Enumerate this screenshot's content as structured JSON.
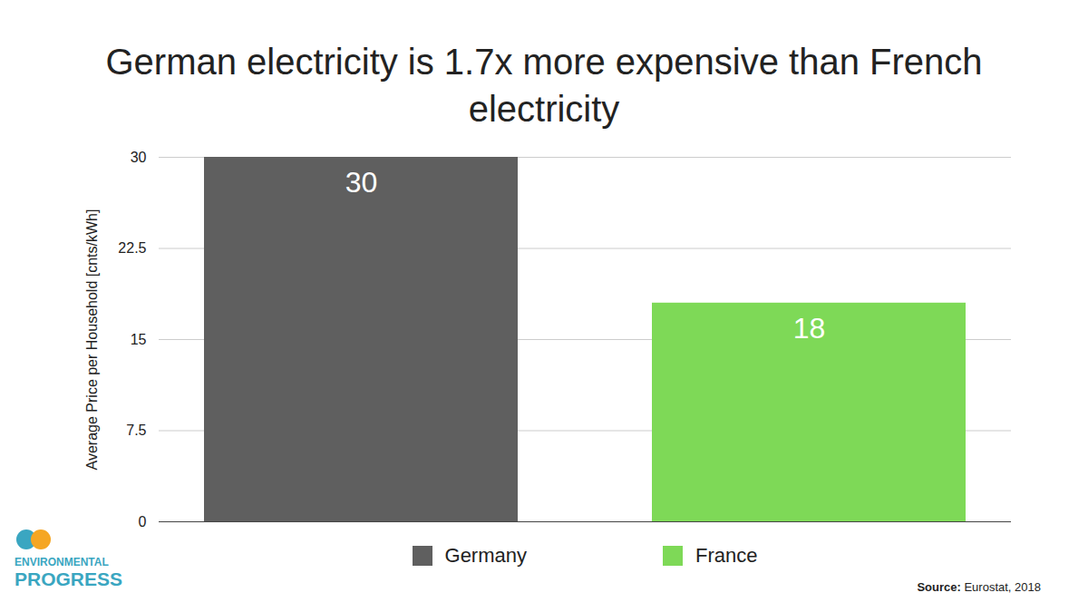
{
  "chart_data": {
    "type": "bar",
    "title": "German electricity is 1.7x more expensive than French electricity",
    "y_label": "Average Price per Household [cnts/kWh]",
    "categories": [
      "Germany",
      "France"
    ],
    "values": [
      30,
      18
    ],
    "colors": [
      "#5f5f5f",
      "#7ed957"
    ],
    "ylim": [
      0,
      30
    ],
    "yticks": [
      0,
      7.5,
      15,
      22.5,
      30
    ],
    "grid": true,
    "data_labels": true,
    "tick_labels": "y",
    "legend": "bottom",
    "source": "Source: Eurostat, 2018",
    "logo": "ENVIRONMENTAL PROGRESS"
  }
}
